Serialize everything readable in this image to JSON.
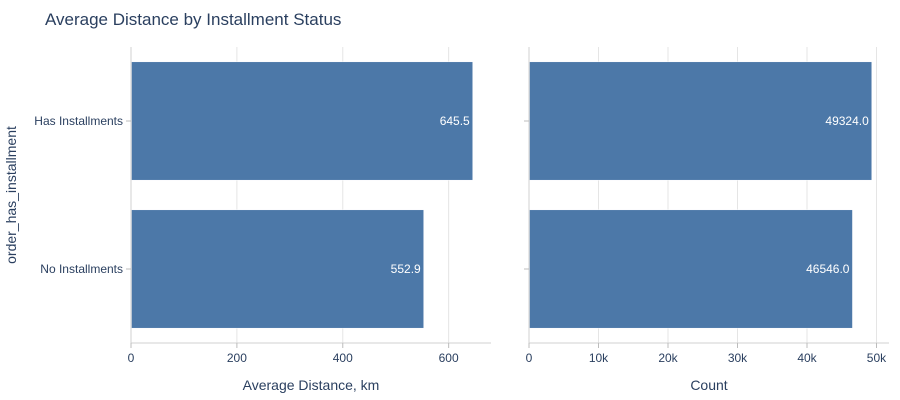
{
  "chart_data": {
    "title": "Average Distance by Installment Status",
    "ylabel": "order_has_installment",
    "categories": [
      "Has Installments",
      "No Installments"
    ],
    "bar_color": "#4c78a8",
    "panels": [
      {
        "type": "bar",
        "orientation": "horizontal",
        "xlabel": "Average Distance, km",
        "xlim": [
          0,
          680
        ],
        "ticks": [
          0,
          200,
          400,
          600
        ],
        "tick_labels": [
          "0",
          "200",
          "400",
          "600"
        ],
        "values": [
          645.5,
          552.9
        ],
        "value_labels": [
          "645.5",
          "552.9"
        ]
      },
      {
        "type": "bar",
        "orientation": "horizontal",
        "xlabel": "Count",
        "xlim": [
          0,
          51800
        ],
        "ticks": [
          0,
          10000,
          20000,
          30000,
          40000,
          50000
        ],
        "tick_labels": [
          "0",
          "10k",
          "20k",
          "30k",
          "40k",
          "50k"
        ],
        "values": [
          49324.0,
          46546.0
        ],
        "value_labels": [
          "49324.0",
          "46546.0"
        ]
      }
    ]
  }
}
